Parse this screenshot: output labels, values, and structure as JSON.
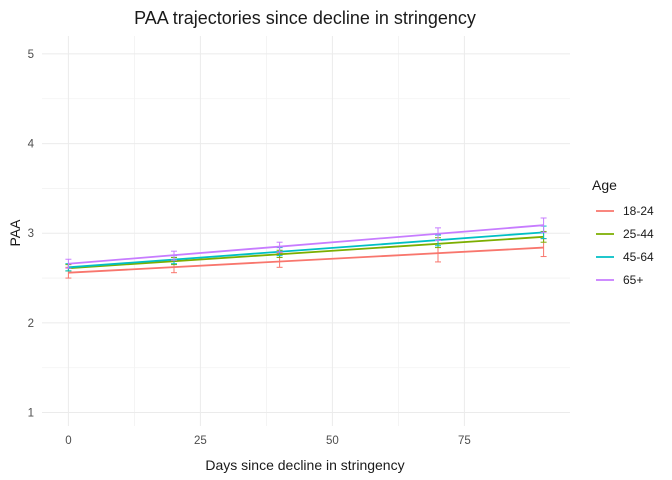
{
  "chart_data": {
    "type": "line",
    "title": "PAA trajectories since decline in stringency",
    "xlabel": "Days since decline in stringency",
    "ylabel": "PAA",
    "xlim": [
      -5,
      95
    ],
    "ylim": [
      0.85,
      5.2
    ],
    "x_ticks": [
      0,
      25,
      50,
      75
    ],
    "x_tick_labels": [
      "0",
      "25",
      "50",
      "75"
    ],
    "y_ticks": [
      1,
      2,
      3,
      4,
      5
    ],
    "y_tick_labels": [
      "1",
      "2",
      "3",
      "4",
      "5"
    ],
    "grid": true,
    "legend": {
      "title": "Age",
      "position": "right"
    },
    "points_x": [
      0,
      20,
      40,
      70,
      90
    ],
    "series": [
      {
        "name": "18-24",
        "color": "#f8766d",
        "line": [
          [
            0,
            2.56
          ],
          [
            90,
            2.84
          ]
        ],
        "points": [
          {
            "x": 0,
            "y": 2.56,
            "lo": 2.5,
            "hi": 2.62
          },
          {
            "x": 20,
            "y": 2.63,
            "lo": 2.56,
            "hi": 2.7
          },
          {
            "x": 40,
            "y": 2.7,
            "lo": 2.62,
            "hi": 2.78
          },
          {
            "x": 70,
            "y": 2.78,
            "lo": 2.68,
            "hi": 2.88
          },
          {
            "x": 90,
            "y": 2.84,
            "lo": 2.74,
            "hi": 2.94
          }
        ]
      },
      {
        "name": "25-44",
        "color": "#7cae00",
        "line": [
          [
            0,
            2.61
          ],
          [
            90,
            2.96
          ]
        ],
        "points": [
          {
            "x": 0,
            "y": 2.61,
            "lo": 2.58,
            "hi": 2.65
          },
          {
            "x": 20,
            "y": 2.69,
            "lo": 2.65,
            "hi": 2.73
          },
          {
            "x": 40,
            "y": 2.77,
            "lo": 2.73,
            "hi": 2.81
          },
          {
            "x": 70,
            "y": 2.89,
            "lo": 2.84,
            "hi": 2.95
          },
          {
            "x": 90,
            "y": 2.96,
            "lo": 2.9,
            "hi": 3.02
          }
        ]
      },
      {
        "name": "45-64",
        "color": "#00bfc4",
        "line": [
          [
            0,
            2.62
          ],
          [
            90,
            3.01
          ]
        ],
        "points": [
          {
            "x": 0,
            "y": 2.62,
            "lo": 2.58,
            "hi": 2.66
          },
          {
            "x": 20,
            "y": 2.71,
            "lo": 2.66,
            "hi": 2.75
          },
          {
            "x": 40,
            "y": 2.79,
            "lo": 2.75,
            "hi": 2.84
          },
          {
            "x": 70,
            "y": 2.92,
            "lo": 2.86,
            "hi": 2.98
          },
          {
            "x": 90,
            "y": 3.01,
            "lo": 2.94,
            "hi": 3.08
          }
        ]
      },
      {
        "name": "65+",
        "color": "#c77cff",
        "line": [
          [
            0,
            2.66
          ],
          [
            90,
            3.09
          ]
        ],
        "points": [
          {
            "x": 0,
            "y": 2.66,
            "lo": 2.61,
            "hi": 2.71
          },
          {
            "x": 20,
            "y": 2.75,
            "lo": 2.7,
            "hi": 2.8
          },
          {
            "x": 40,
            "y": 2.85,
            "lo": 2.79,
            "hi": 2.9
          },
          {
            "x": 70,
            "y": 2.99,
            "lo": 2.92,
            "hi": 3.06
          },
          {
            "x": 90,
            "y": 3.09,
            "lo": 3.01,
            "hi": 3.17
          }
        ]
      }
    ]
  }
}
